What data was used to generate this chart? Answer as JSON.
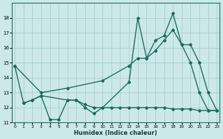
{
  "xlabel": "Humidex (Indice chaleur)",
  "bg_color": "#cce8e8",
  "grid_color": "#aad4d0",
  "line_color": "#1a6b60",
  "ylim": [
    11,
    19
  ],
  "xlim": [
    -0.3,
    23.3
  ],
  "yticks": [
    11,
    12,
    13,
    14,
    15,
    16,
    17,
    18
  ],
  "xticks": [
    0,
    1,
    2,
    3,
    4,
    5,
    6,
    7,
    8,
    9,
    10,
    11,
    12,
    13,
    14,
    15,
    16,
    17,
    18,
    19,
    20,
    21,
    22,
    23
  ],
  "line_jagged_x": [
    0,
    1,
    2,
    3,
    4,
    5,
    6,
    7,
    8,
    9,
    10,
    13,
    14,
    15,
    16,
    17,
    18,
    19,
    20,
    21,
    22,
    23
  ],
  "line_jagged_y": [
    14.8,
    12.3,
    12.5,
    12.8,
    11.2,
    11.2,
    12.5,
    12.5,
    12.0,
    11.6,
    12.0,
    13.7,
    18.0,
    15.3,
    16.5,
    16.8,
    18.3,
    16.2,
    15.0,
    13.0,
    11.8,
    11.8
  ],
  "line_diag_x": [
    0,
    3,
    6,
    10,
    13,
    14,
    15,
    16,
    17,
    18,
    19,
    20,
    21,
    22,
    23
  ],
  "line_diag_y": [
    14.8,
    13.0,
    13.3,
    13.8,
    14.8,
    15.3,
    15.3,
    15.8,
    16.5,
    17.2,
    16.2,
    16.2,
    15.0,
    13.0,
    11.8
  ],
  "line_flat_x": [
    1,
    2,
    3,
    6,
    7,
    8,
    9,
    10,
    11,
    12,
    13,
    14,
    15,
    16,
    17,
    18,
    19,
    20,
    21,
    22,
    23
  ],
  "line_flat_y": [
    12.3,
    12.5,
    12.8,
    12.5,
    12.5,
    12.2,
    12.0,
    12.0,
    12.0,
    12.0,
    12.0,
    12.0,
    12.0,
    12.0,
    12.0,
    11.9,
    11.9,
    11.9,
    11.8,
    11.8,
    11.8
  ]
}
